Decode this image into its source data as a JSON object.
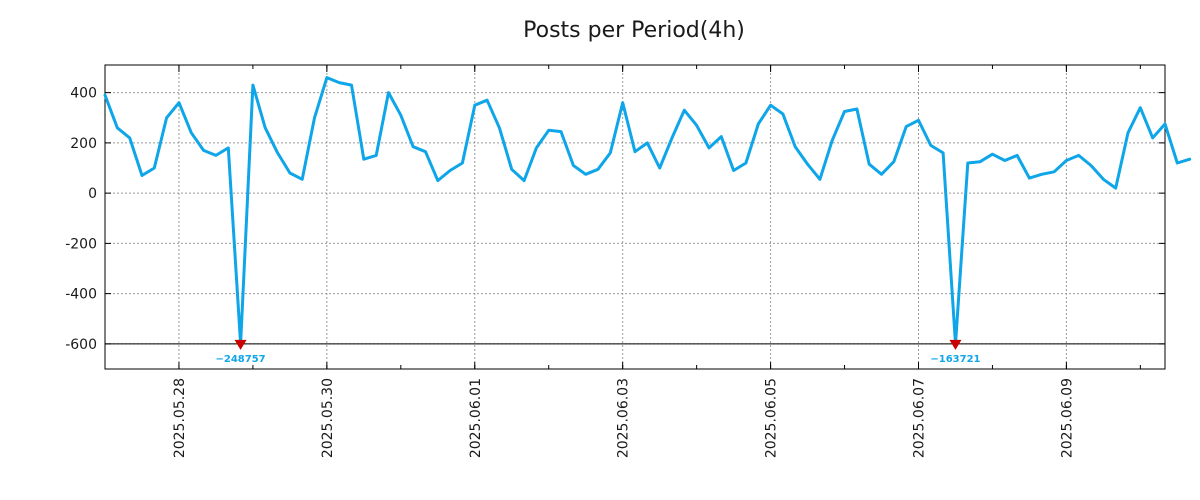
{
  "chart_data": {
    "type": "line",
    "title": "Posts per Period(4h)",
    "xlabel": "",
    "ylabel": "",
    "ylim": [
      -700,
      510
    ],
    "yticks": [
      400,
      200,
      0,
      -200,
      -400,
      -600
    ],
    "grid": true,
    "x_start": "2025-05-27T00:00",
    "x_end": "2025-06-10T08:00",
    "period_hours": 4,
    "xtick_labels": [
      "2025.05.28",
      "2025.05.30",
      "2025.06.01",
      "2025.06.03",
      "2025.06.05",
      "2025.06.07",
      "2025.06.09"
    ],
    "clip_value": -600,
    "colors": {
      "line": "#0ea5e9",
      "marker": "#cc0000",
      "annotation": "#0ea5e9"
    },
    "series": [
      {
        "name": "Posts",
        "values": [
          390,
          260,
          220,
          70,
          100,
          300,
          360,
          240,
          170,
          150,
          180,
          -600,
          430,
          260,
          160,
          80,
          55,
          300,
          460,
          440,
          430,
          135,
          150,
          400,
          310,
          185,
          165,
          50,
          90,
          120,
          350,
          370,
          260,
          95,
          50,
          180,
          250,
          245,
          110,
          75,
          95,
          160,
          360,
          165,
          200,
          100,
          220,
          330,
          270,
          180,
          225,
          90,
          120,
          275,
          350,
          315,
          185,
          115,
          55,
          210,
          325,
          335,
          115,
          75,
          125,
          265,
          290,
          190,
          160,
          -600,
          120,
          125,
          155,
          130,
          150,
          60,
          75,
          85,
          130,
          150,
          110,
          55,
          20,
          240,
          340,
          220,
          275,
          120,
          135
        ]
      }
    ],
    "annotations": [
      {
        "index": 11,
        "label": "−248757"
      },
      {
        "index": 69,
        "label": "−163721"
      }
    ]
  }
}
